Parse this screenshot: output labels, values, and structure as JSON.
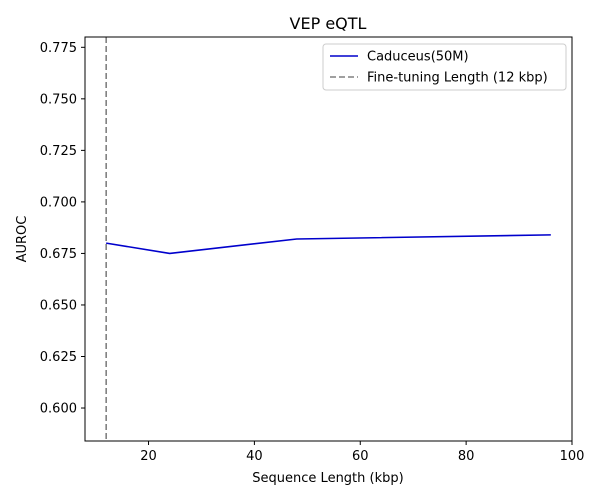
{
  "chart_data": {
    "type": "line",
    "title": "VEP eQTL",
    "xlabel": "Sequence Length (kbp)",
    "ylabel": "AUROC",
    "xlim": [
      8,
      100
    ],
    "ylim": [
      0.584,
      0.78
    ],
    "xticks": [
      20,
      40,
      60,
      80,
      100
    ],
    "yticks": [
      0.6,
      0.625,
      0.65,
      0.675,
      0.7,
      0.725,
      0.75,
      0.775
    ],
    "xtick_labels": [
      "20",
      "40",
      "60",
      "80",
      "100"
    ],
    "ytick_labels": [
      "0.600",
      "0.625",
      "0.650",
      "0.675",
      "0.700",
      "0.725",
      "0.750",
      "0.775"
    ],
    "grid": false,
    "legend_position": "top-right",
    "series": [
      {
        "name": "Caduceus(50M)",
        "color": "#0000cc",
        "style": "solid",
        "x": [
          12,
          24,
          48,
          96
        ],
        "y": [
          0.68,
          0.675,
          0.682,
          0.684
        ]
      }
    ],
    "reference_lines": [
      {
        "name": "Fine-tuning Length (12 kbp)",
        "orientation": "vertical",
        "x": 12,
        "color": "#808080",
        "style": "dashed"
      }
    ]
  }
}
